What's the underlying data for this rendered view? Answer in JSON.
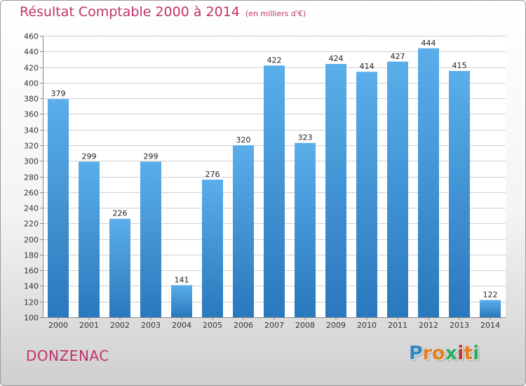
{
  "chart_data": {
    "type": "bar",
    "title": "Résultat Comptable 2000 à 2014",
    "subtitle": "(en milliers d'€)",
    "categories": [
      "2000",
      "2001",
      "2002",
      "2003",
      "2004",
      "2005",
      "2006",
      "2007",
      "2008",
      "2009",
      "2010",
      "2011",
      "2012",
      "2013",
      "2014"
    ],
    "values": [
      379,
      299,
      226,
      299,
      141,
      276,
      320,
      422,
      323,
      424,
      414,
      427,
      444,
      415,
      122
    ],
    "ylim": [
      100,
      460
    ],
    "yticks": [
      "100",
      "120",
      "140",
      "160",
      "180",
      "200",
      "220",
      "240",
      "260",
      "280",
      "300",
      "320",
      "340",
      "360",
      "380",
      "400",
      "420",
      "440",
      "460"
    ],
    "xlabel": "",
    "ylabel": "",
    "grid": true,
    "bar_color": "#3d8fd6"
  },
  "footer": {
    "town": "DONZENAC",
    "logo": {
      "letters": [
        "P",
        "r",
        "o",
        "x",
        "i",
        "t",
        "i"
      ],
      "colors": [
        "#2e86c1",
        "#e67e22",
        "#e67e22",
        "#27ae60",
        "#c0392b",
        "#e67e22",
        "#27ae60"
      ]
    }
  }
}
